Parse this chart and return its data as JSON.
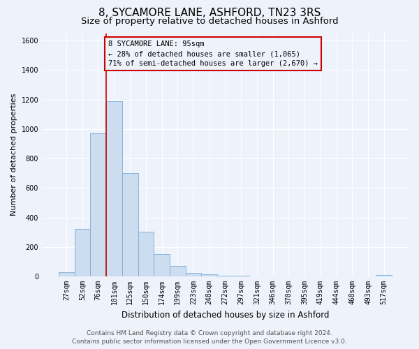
{
  "title": "8, SYCAMORE LANE, ASHFORD, TN23 3RS",
  "subtitle": "Size of property relative to detached houses in Ashford",
  "xlabel": "Distribution of detached houses by size in Ashford",
  "ylabel": "Number of detached properties",
  "bar_labels": [
    "27sqm",
    "52sqm",
    "76sqm",
    "101sqm",
    "125sqm",
    "150sqm",
    "174sqm",
    "199sqm",
    "223sqm",
    "248sqm",
    "272sqm",
    "297sqm",
    "321sqm",
    "346sqm",
    "370sqm",
    "395sqm",
    "419sqm",
    "444sqm",
    "468sqm",
    "493sqm",
    "517sqm"
  ],
  "bar_values": [
    30,
    320,
    970,
    1190,
    700,
    305,
    150,
    70,
    25,
    15,
    5,
    5,
    2,
    1,
    0,
    0,
    0,
    0,
    0,
    0,
    10
  ],
  "bar_color": "#ccddf0",
  "bar_edge_color": "#7aadd4",
  "vline_color": "#cc0000",
  "annotation_box_text": "8 SYCAMORE LANE: 95sqm\n← 28% of detached houses are smaller (1,065)\n71% of semi-detached houses are larger (2,670) →",
  "annotation_box_edge_color": "#cc0000",
  "ylim": [
    0,
    1650
  ],
  "yticks": [
    0,
    200,
    400,
    600,
    800,
    1000,
    1200,
    1400,
    1600
  ],
  "footer_line1": "Contains HM Land Registry data © Crown copyright and database right 2024.",
  "footer_line2": "Contains public sector information licensed under the Open Government Licence v3.0.",
  "bg_color": "#eef2fa",
  "grid_color": "#ffffff",
  "title_fontsize": 11,
  "subtitle_fontsize": 9.5,
  "ylabel_fontsize": 8,
  "xlabel_fontsize": 8.5,
  "tick_fontsize": 7,
  "annot_fontsize": 7.5,
  "footer_fontsize": 6.5
}
